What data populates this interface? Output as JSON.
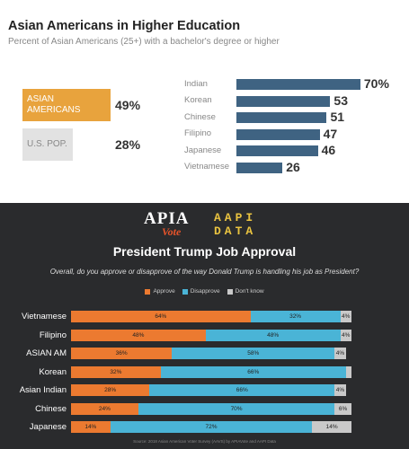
{
  "colors": {
    "gold": "#e8a33d",
    "gray_box": "#e2e2e2",
    "blue_bar": "#3f6382",
    "approve": "#ec7a30",
    "disapprove": "#4ab4d6",
    "dont_know": "#c9c9c9"
  },
  "top": {
    "title": "Asian Americans in Higher Education",
    "subtitle": "Percent of Asian Americans (25+) with a bachelor's degree or higher"
  },
  "chart_data": [
    {
      "type": "bar",
      "title": "Asian Americans in Higher Education",
      "subtitle": "Percent of Asian Americans (25+) with a bachelor's degree or higher",
      "summary": [
        {
          "label": "ASIAN AMERICANS",
          "value": 49,
          "value_label": "49%"
        },
        {
          "label": "U.S. POP.",
          "value": 28,
          "value_label": "28%"
        }
      ],
      "categories": [
        "Indian",
        "Korean",
        "Chinese",
        "Filipino",
        "Japanese",
        "Vietnamese"
      ],
      "values": [
        70,
        53,
        51,
        47,
        46,
        26
      ],
      "value_labels": [
        "70%",
        "53",
        "51",
        "47",
        "46",
        "26"
      ],
      "orientation": "horizontal"
    },
    {
      "type": "bar",
      "stacked": true,
      "orientation": "horizontal",
      "title": "President Trump Job Approval",
      "question": "Overall, do you approve or disapprove of the way Donald Trump is handling his job as President?",
      "legend": [
        "Approve",
        "Disapprove",
        "Don't know"
      ],
      "legend_position": "top",
      "categories": [
        "Vietnamese",
        "Filipino",
        "ASIAN AM",
        "Korean",
        "Asian Indian",
        "Chinese",
        "Japanese"
      ],
      "series": [
        {
          "name": "Approve",
          "values": [
            64,
            48,
            36,
            32,
            28,
            24,
            14
          ],
          "labels": [
            "64%",
            "48%",
            "36%",
            "32%",
            "28%",
            "24%",
            "14%"
          ]
        },
        {
          "name": "Disapprove",
          "values": [
            32,
            48,
            58,
            66,
            66,
            70,
            72
          ],
          "labels": [
            "32%",
            "48%",
            "58%",
            "66%",
            "66%",
            "70%",
            "72%"
          ]
        },
        {
          "name": "Don't know",
          "values": [
            4,
            4,
            4,
            2,
            4,
            6,
            14
          ],
          "labels": [
            "4%",
            "4%",
            "4%",
            "",
            "4%",
            "6%",
            "14%"
          ]
        }
      ]
    }
  ],
  "bottom": {
    "logo_apia": "APIA",
    "logo_vote": "Vote",
    "logo_aapi": "AAPI",
    "logo_data": "DATA",
    "title": "President Trump Job Approval",
    "question": "Overall, do you approve or disapprove of the way Donald Trump is handling his job as President?",
    "legend": [
      "Approve",
      "Disapprove",
      "Don't know"
    ],
    "source": "Source: 2018 Asian American Voter Survey (AAVS) by APIAVote and AAPI Data"
  }
}
